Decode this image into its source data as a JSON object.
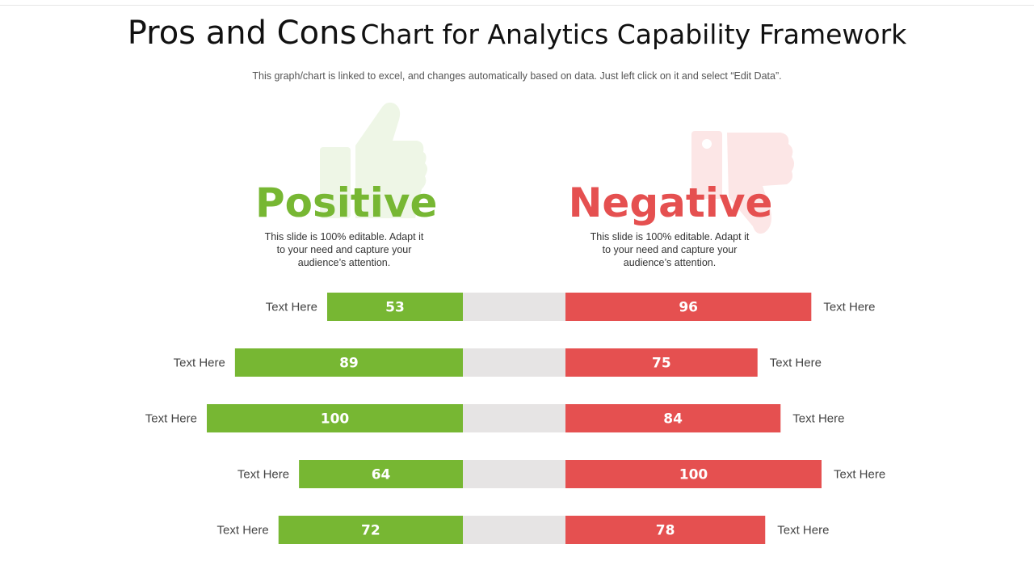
{
  "title": {
    "main": "Pros and Cons",
    "rest": "Chart for Analytics Capability Framework"
  },
  "subtitle": "This graph/chart is linked to excel, and changes automatically based on data. Just left click on it and select “Edit Data”.",
  "positive": {
    "heading": "Positive",
    "description": "This slide is 100% editable. Adapt it to your need and capture your audience’s attention.",
    "icon": "thumbs-up-icon"
  },
  "negative": {
    "heading": "Negative",
    "description": "This slide is 100% editable. Adapt it to your need and capture your audience’s attention.",
    "icon": "thumbs-down-icon"
  },
  "colors": {
    "positive": "#77b733",
    "negative": "#e55050",
    "track": "#e6e4e4",
    "positive_icon": "#eef6e6",
    "negative_icon": "#fce6e6"
  },
  "chart_data": {
    "type": "bar",
    "orientation": "horizontal-diverging",
    "categories": [
      "Text Here",
      "Text Here",
      "Text Here",
      "Text Here",
      "Text Here"
    ],
    "series": [
      {
        "name": "Positive",
        "values": [
          53,
          89,
          100,
          64,
          72
        ]
      },
      {
        "name": "Negative",
        "values": [
          96,
          75,
          84,
          100,
          78
        ]
      }
    ],
    "right_labels": [
      "Text Here",
      "Text Here",
      "Text Here",
      "Text Here",
      "Text Here"
    ],
    "xlim": [
      0,
      100
    ]
  }
}
